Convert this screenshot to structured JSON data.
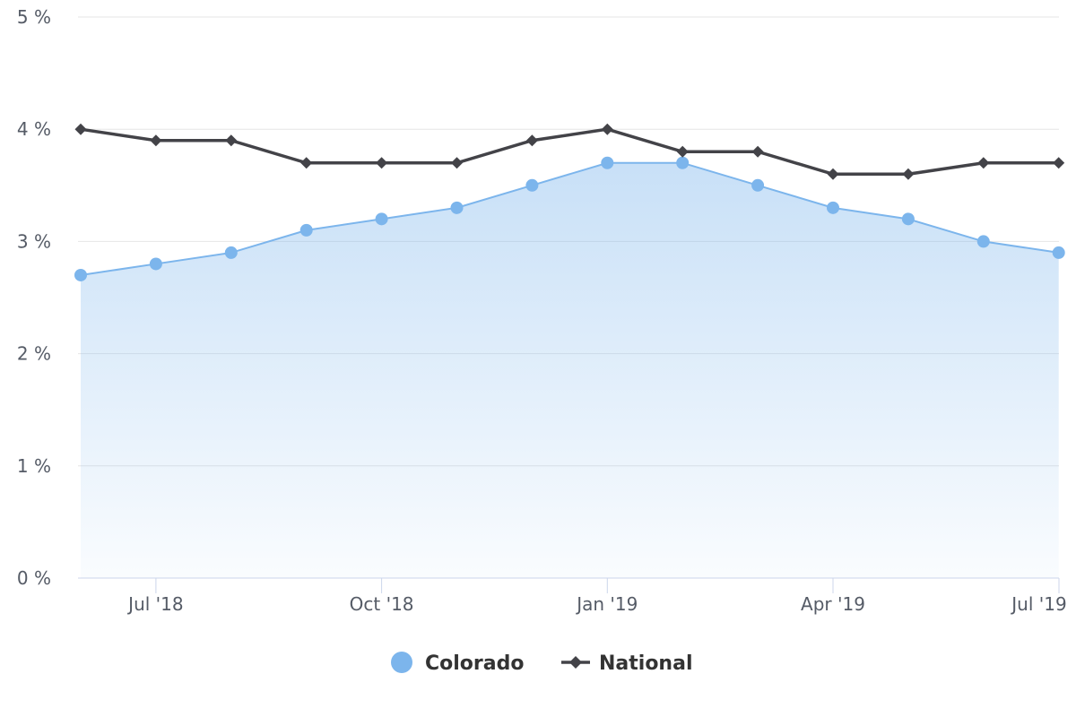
{
  "chart_data": {
    "type": "line",
    "x": [
      "2018-06",
      "2018-07",
      "2018-08",
      "2018-09",
      "2018-10",
      "2018-11",
      "2018-12",
      "2019-01",
      "2019-02",
      "2019-03",
      "2019-04",
      "2019-05",
      "2019-06",
      "2019-07"
    ],
    "series": [
      {
        "name": "Colorado",
        "values": [
          2.7,
          2.8,
          2.9,
          3.1,
          3.2,
          3.3,
          3.5,
          3.7,
          3.7,
          3.5,
          3.3,
          3.2,
          3.0,
          2.9
        ],
        "color": "#7cb5ec",
        "style": "area",
        "marker": "circle"
      },
      {
        "name": "National",
        "values": [
          4.0,
          3.9,
          3.9,
          3.7,
          3.7,
          3.7,
          3.9,
          4.0,
          3.8,
          3.8,
          3.6,
          3.6,
          3.7,
          3.7
        ],
        "color": "#434348",
        "style": "line",
        "marker": "diamond"
      }
    ],
    "ylim": [
      0,
      5
    ],
    "y_ticks": [
      {
        "value": 0,
        "label": "0 %"
      },
      {
        "value": 1,
        "label": "1 %"
      },
      {
        "value": 2,
        "label": "2 %"
      },
      {
        "value": 3,
        "label": "3 %"
      },
      {
        "value": 4,
        "label": "4 %"
      },
      {
        "value": 5,
        "label": "5 %"
      }
    ],
    "x_ticks": [
      {
        "x": "2018-07",
        "label": "Jul '18"
      },
      {
        "x": "2018-10",
        "label": "Oct '18"
      },
      {
        "x": "2019-01",
        "label": "Jan '19"
      },
      {
        "x": "2019-04",
        "label": "Apr '19"
      },
      {
        "x": "2019-07",
        "label": "Jul '19"
      }
    ],
    "grid": true,
    "legend_position": "bottom-center"
  }
}
